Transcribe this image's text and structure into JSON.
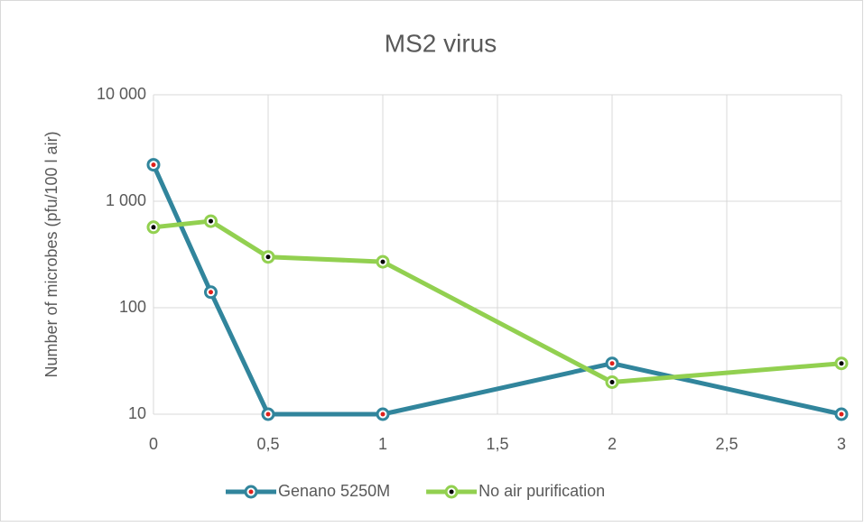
{
  "chart_data": {
    "type": "line",
    "title": "MS2 virus",
    "ylabel": "Number of microbes (pfu/100 l air)",
    "x": [
      0,
      0.25,
      0.5,
      1,
      2,
      3
    ],
    "series": [
      {
        "name": "Genano 5250M",
        "color": "#31859c",
        "marker_color": "#e0201b",
        "values": [
          2200,
          140,
          10,
          10,
          30,
          10
        ]
      },
      {
        "name": "No air purification",
        "color": "#92d050",
        "marker_color": "#000000",
        "values": [
          570,
          650,
          300,
          270,
          20,
          30
        ]
      }
    ],
    "xlim": [
      0,
      3
    ],
    "xticks": [
      0,
      {
        "value": 0.5,
        "label": "0,5"
      },
      1,
      {
        "value": 1.5,
        "label": "1,5"
      },
      2,
      {
        "value": 2.5,
        "label": "2,5"
      },
      3
    ],
    "ylim": [
      10,
      10000
    ],
    "ylog": true,
    "yticks": [
      10,
      100,
      {
        "value": 1000,
        "label": "1 000"
      },
      {
        "value": 10000,
        "label": "10 000"
      }
    ],
    "grid": true,
    "legend": "bottom"
  }
}
